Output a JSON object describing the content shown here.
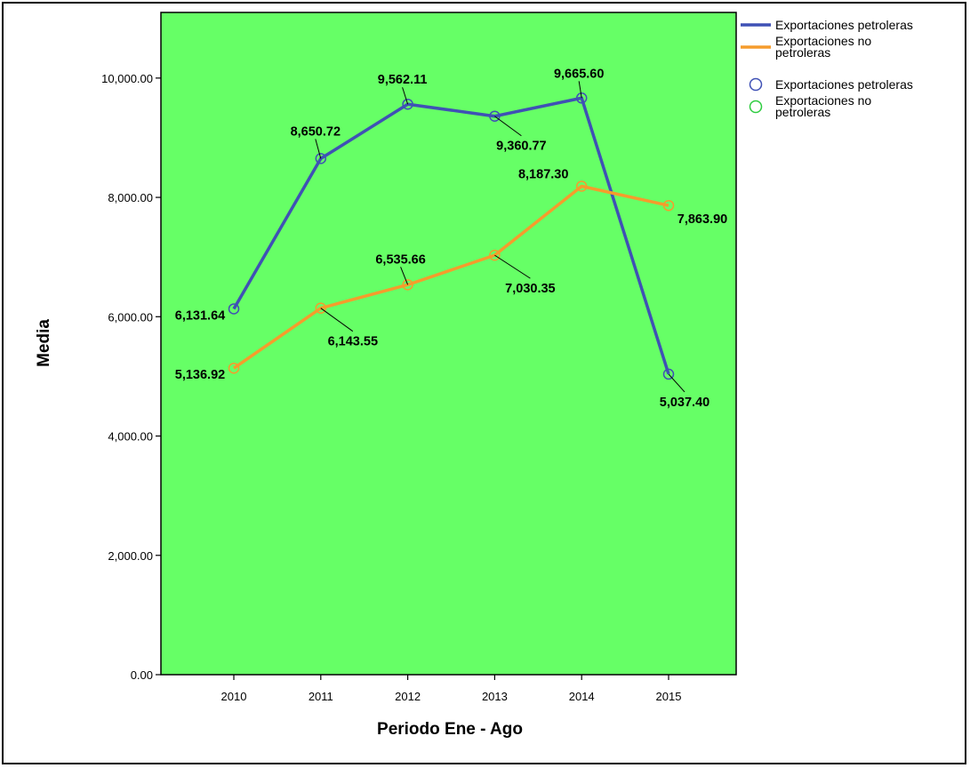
{
  "chart_data": {
    "type": "line",
    "categories": [
      "2010",
      "2011",
      "2012",
      "2013",
      "2014",
      "2015"
    ],
    "xlabel": "Periodo Ene - Ago",
    "ylabel": "Media",
    "ylim": [
      0,
      11100
    ],
    "yticks": [
      0,
      2000,
      4000,
      6000,
      8000,
      10000
    ],
    "ytick_labels": [
      "0.00",
      "2,000.00",
      "4,000.00",
      "6,000.00",
      "8,000.00",
      "10,000.00"
    ],
    "plot_background": "#66ff66",
    "grid": false,
    "legend_position": "top-right",
    "series": [
      {
        "name": "Exportaciones petroleras",
        "color": "#3f51b5",
        "values": [
          6131.64,
          8650.72,
          9562.11,
          9360.77,
          9665.6,
          5037.4
        ],
        "labels": [
          "6,131.64",
          "8,650.72",
          "9,562.11",
          "9,360.77",
          "9,665.60",
          "5,037.40"
        ]
      },
      {
        "name": "Exportaciones no petroleras",
        "color": "#f59c2c",
        "values": [
          5136.92,
          6143.55,
          6535.66,
          7030.35,
          8187.3,
          7863.9
        ],
        "labels": [
          "5,136.92",
          "6,143.55",
          "6,535.66",
          "7,030.35",
          "8,187.30",
          "7,863.90"
        ]
      }
    ],
    "legend": [
      {
        "kind": "line",
        "label": "Exportaciones petroleras",
        "color": "#3f51b5"
      },
      {
        "kind": "line",
        "label": "Exportaciones no petroleras",
        "color": "#f59c2c"
      },
      {
        "kind": "marker",
        "label": "Exportaciones petroleras",
        "color": "#3f51b5"
      },
      {
        "kind": "marker",
        "label": "Exportaciones no petroleras",
        "color": "#2ecc40"
      }
    ]
  }
}
